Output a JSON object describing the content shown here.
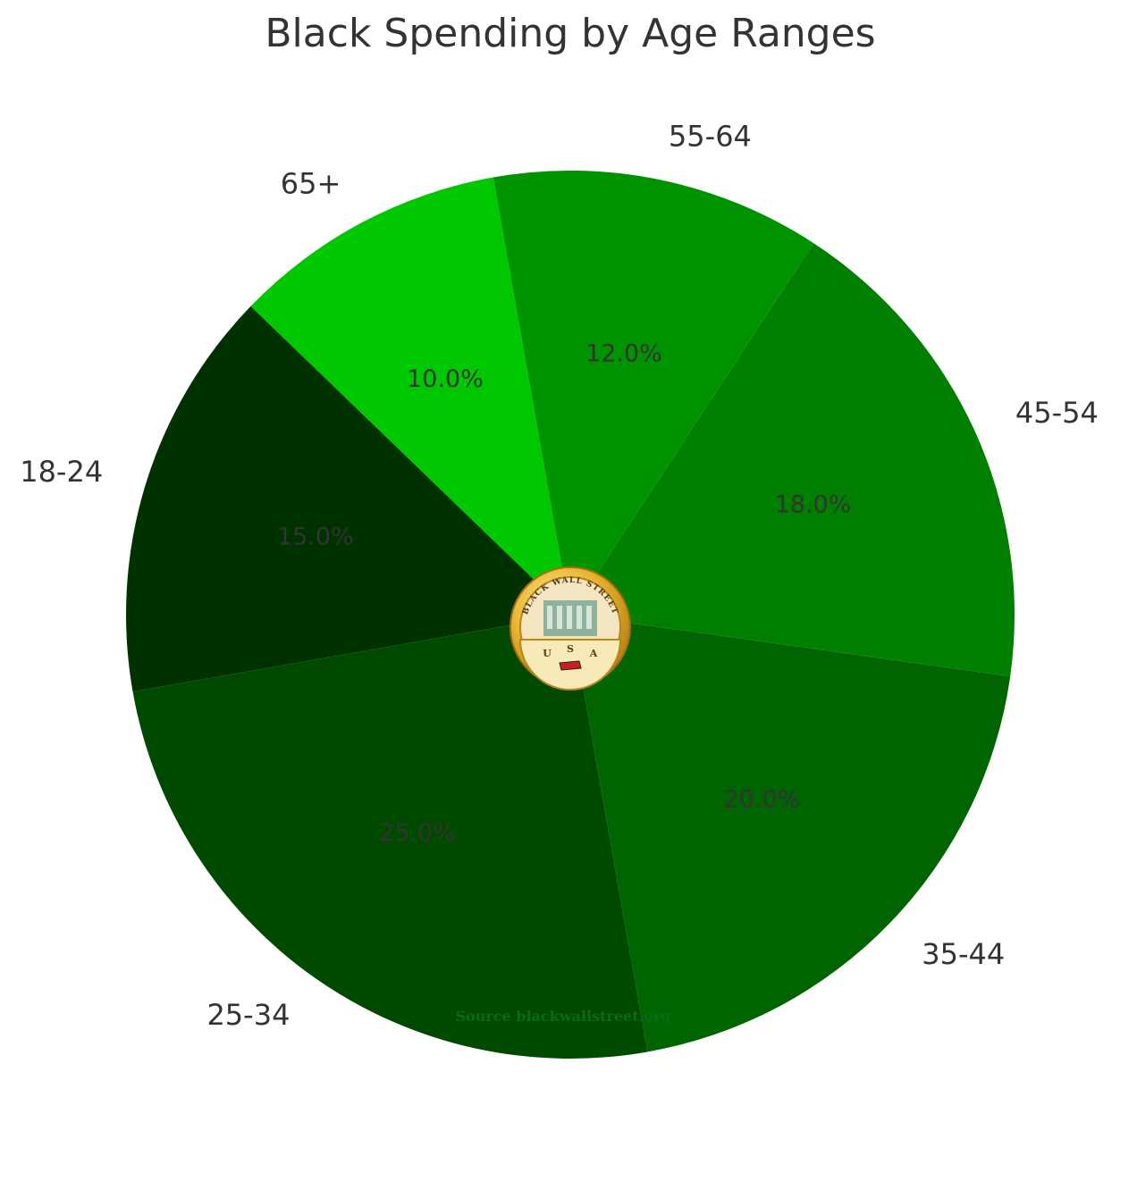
{
  "chart_data": {
    "type": "pie",
    "title": "Black Spending by Age Ranges",
    "categories": [
      "18-24",
      "25-34",
      "35-44",
      "45-54",
      "55-64",
      "65+"
    ],
    "values": [
      15.0,
      25.0,
      20.0,
      18.0,
      12.0,
      10.0
    ],
    "value_labels": [
      "15.0%",
      "25.0%",
      "20.0%",
      "18.0%",
      "12.0%",
      "10.0%"
    ],
    "colors": [
      "#003200",
      "#004a00",
      "#006400",
      "#007f00",
      "#009300",
      "#00c800"
    ],
    "source": "Source blackwallstreet.org"
  },
  "seal": {
    "arc_text": "BLACK WALL STREET",
    "letters": [
      "U",
      "S",
      "A"
    ]
  }
}
